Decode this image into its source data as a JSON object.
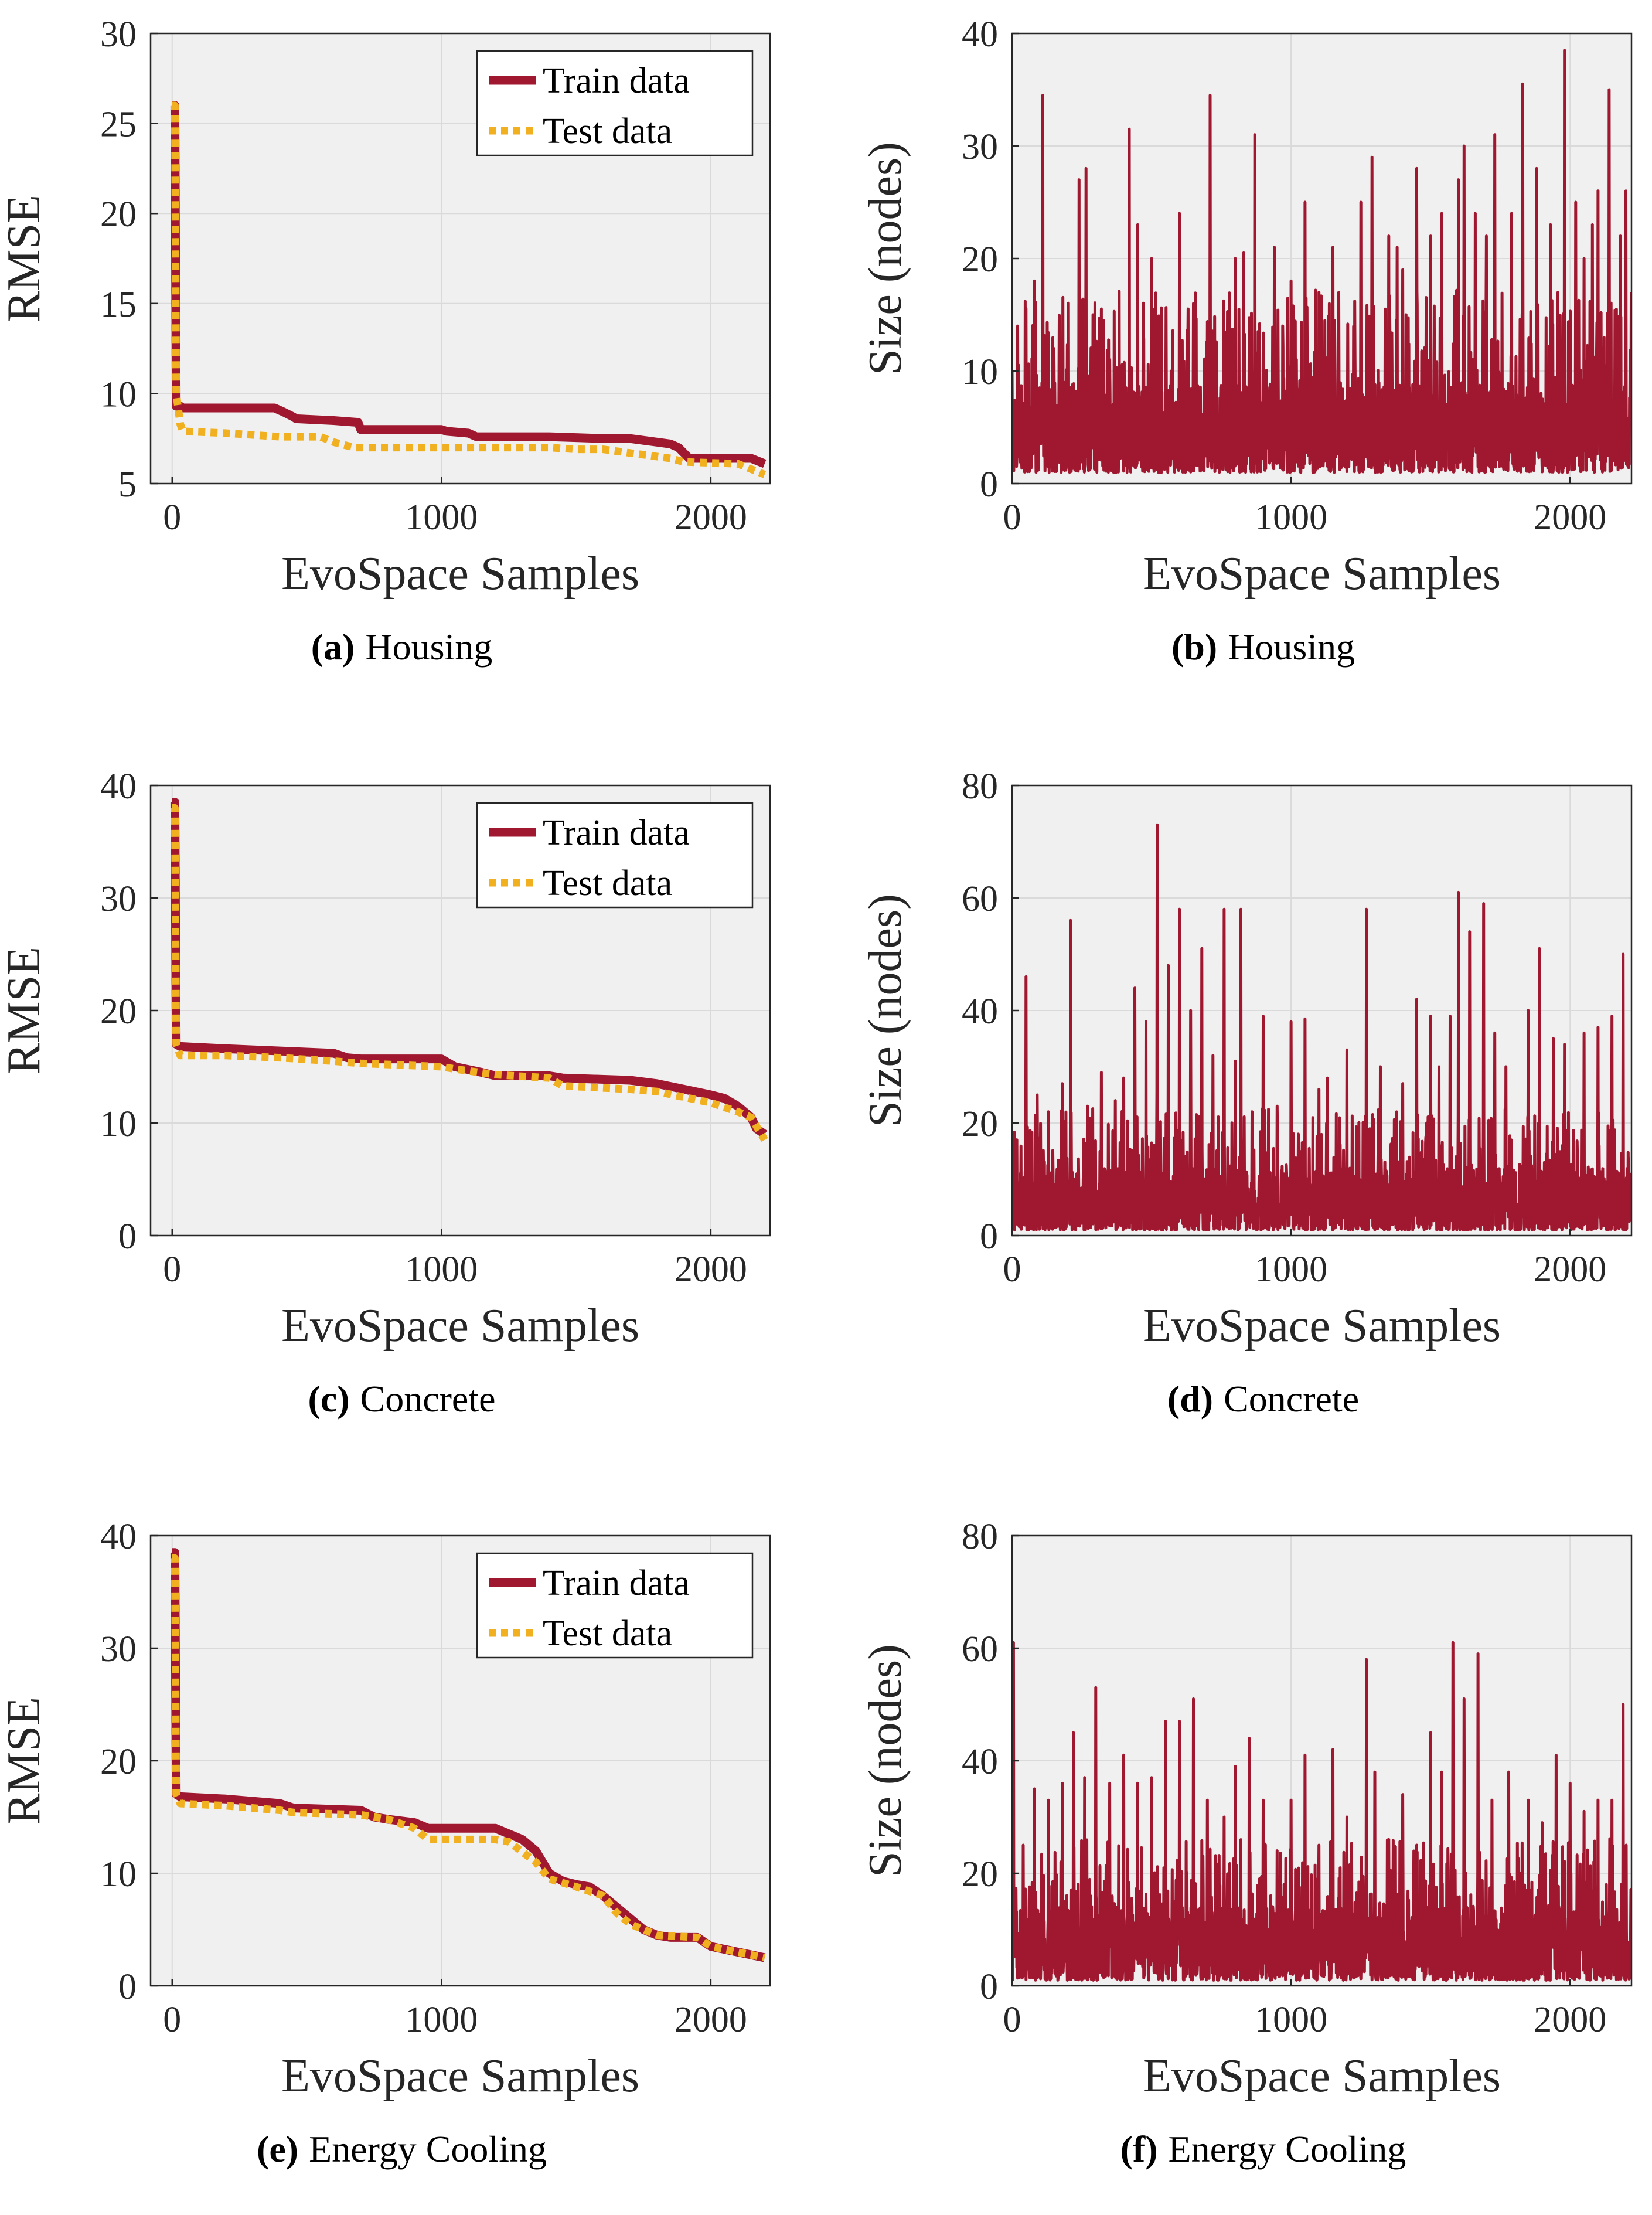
{
  "colors": {
    "train": "#a01830",
    "test": "#f0b020",
    "size": "#a01830",
    "plot_bg": "#f0f0f0",
    "grid": "#dadada",
    "axis": "#262626"
  },
  "chart_data": [
    {
      "id": "a",
      "type": "line",
      "caption_letter": "(a)",
      "caption_text": "Housing",
      "title": "",
      "xlabel": "EvoSpace Samples",
      "ylabel": "RMSE",
      "xlim": [
        -80,
        2220
      ],
      "ylim": [
        5,
        30
      ],
      "xticks": [
        0,
        1000,
        2000
      ],
      "yticks": [
        5,
        10,
        15,
        20,
        25,
        30
      ],
      "grid": true,
      "legend_position": "top-right",
      "series": [
        {
          "name": "Train data",
          "style": "solid",
          "x": [
            0,
            10,
            15,
            30,
            40,
            380,
            410,
            450,
            460,
            600,
            690,
            700,
            1000,
            1020,
            1100,
            1130,
            1400,
            1600,
            1700,
            1850,
            1880,
            1920,
            2150,
            2200
          ],
          "y": [
            26.0,
            26.0,
            9.3,
            9.3,
            9.2,
            9.2,
            9.0,
            8.7,
            8.6,
            8.5,
            8.4,
            8.0,
            8.0,
            7.9,
            7.8,
            7.6,
            7.6,
            7.5,
            7.5,
            7.2,
            7.0,
            6.4,
            6.4,
            6.1
          ]
        },
        {
          "name": "Test data",
          "style": "dotted",
          "x": [
            0,
            10,
            15,
            30,
            40,
            200,
            400,
            550,
            600,
            650,
            680,
            1000,
            1100,
            1400,
            1500,
            1600,
            1700,
            1750,
            1800,
            1850,
            1900,
            2100,
            2200
          ],
          "y": [
            26.0,
            26.0,
            10.0,
            8.3,
            7.9,
            7.8,
            7.6,
            7.6,
            7.3,
            7.1,
            7.0,
            7.0,
            7.0,
            7.0,
            6.9,
            6.9,
            6.7,
            6.6,
            6.5,
            6.4,
            6.2,
            6.1,
            5.5
          ]
        }
      ]
    },
    {
      "id": "b",
      "type": "line",
      "caption_letter": "(b)",
      "caption_text": "Housing",
      "title": "",
      "xlabel": "EvoSpace Samples",
      "ylabel": "Size (nodes)",
      "xlim": [
        0,
        2220
      ],
      "ylim": [
        0,
        40
      ],
      "xticks": [
        0,
        1000,
        2000
      ],
      "yticks": [
        0,
        10,
        20,
        30,
        40
      ],
      "grid": true,
      "legend_position": "none",
      "series": [
        {
          "name": "Size",
          "style": "solid",
          "samples": 2220,
          "baseline_low": 1,
          "baseline_high": 9,
          "seed": 11,
          "peaks": [
            [
              20,
              14
            ],
            [
              80,
              18
            ],
            [
              110,
              34.5
            ],
            [
              150,
              12
            ],
            [
              190,
              9
            ],
            [
              240,
              27
            ],
            [
              265,
              28
            ],
            [
              290,
              15
            ],
            [
              350,
              11
            ],
            [
              420,
              31.5
            ],
            [
              450,
              23
            ],
            [
              500,
              20
            ],
            [
              570,
              10
            ],
            [
              600,
              24
            ],
            [
              650,
              16
            ],
            [
              710,
              34.5
            ],
            [
              760,
              13
            ],
            [
              800,
              20
            ],
            [
              830,
              20.5
            ],
            [
              870,
              31
            ],
            [
              900,
              12
            ],
            [
              940,
              21
            ],
            [
              1000,
              18
            ],
            [
              1050,
              25
            ],
            [
              1100,
              17
            ],
            [
              1150,
              21
            ],
            [
              1250,
              25
            ],
            [
              1290,
              29
            ],
            [
              1350,
              22
            ],
            [
              1380,
              21
            ],
            [
              1400,
              19
            ],
            [
              1450,
              28
            ],
            [
              1500,
              22
            ],
            [
              1540,
              24
            ],
            [
              1600,
              27
            ],
            [
              1620,
              30
            ],
            [
              1660,
              24
            ],
            [
              1700,
              22
            ],
            [
              1730,
              31
            ],
            [
              1790,
              24
            ],
            [
              1830,
              35.5
            ],
            [
              1880,
              28
            ],
            [
              1930,
              23
            ],
            [
              1980,
              38.5
            ],
            [
              2020,
              25
            ],
            [
              2050,
              20
            ],
            [
              2080,
              23
            ],
            [
              2100,
              26
            ],
            [
              2140,
              35
            ],
            [
              2180,
              22
            ],
            [
              2200,
              26
            ]
          ],
          "end_value": 17
        }
      ]
    },
    {
      "id": "c",
      "type": "line",
      "caption_letter": "(c)",
      "caption_text": "Concrete",
      "title": "",
      "xlabel": "EvoSpace Samples",
      "ylabel": "RMSE",
      "xlim": [
        -80,
        2220
      ],
      "ylim": [
        0,
        40
      ],
      "xticks": [
        0,
        1000,
        2000
      ],
      "yticks": [
        0,
        10,
        20,
        30,
        40
      ],
      "grid": true,
      "legend_position": "top-right",
      "series": [
        {
          "name": "Train data",
          "style": "solid",
          "x": [
            0,
            10,
            15,
            30,
            200,
            400,
            600,
            650,
            700,
            1000,
            1050,
            1150,
            1200,
            1400,
            1450,
            1700,
            1800,
            1900,
            2000,
            2050,
            2100,
            2150,
            2170,
            2200
          ],
          "y": [
            38.5,
            38.5,
            17.0,
            16.8,
            16.6,
            16.4,
            16.2,
            15.8,
            15.7,
            15.7,
            15.0,
            14.5,
            14.2,
            14.2,
            14.0,
            13.8,
            13.5,
            13.0,
            12.5,
            12.2,
            11.5,
            10.5,
            9.5,
            9.0
          ]
        },
        {
          "name": "Test data",
          "style": "dotted",
          "x": [
            0,
            10,
            15,
            30,
            200,
            400,
            600,
            700,
            1000,
            1050,
            1200,
            1400,
            1450,
            1700,
            1800,
            1900,
            2000,
            2100,
            2150,
            2200
          ],
          "y": [
            38.0,
            38.0,
            17.0,
            16.0,
            16.0,
            15.8,
            15.5,
            15.3,
            15.0,
            14.8,
            14.3,
            14.0,
            13.3,
            13.0,
            12.8,
            12.3,
            11.8,
            11.0,
            10.5,
            8.5
          ]
        }
      ]
    },
    {
      "id": "d",
      "type": "line",
      "caption_letter": "(d)",
      "caption_text": "Concrete",
      "title": "",
      "xlabel": "EvoSpace Samples",
      "ylabel": "Size (nodes)",
      "xlim": [
        0,
        2220
      ],
      "ylim": [
        0,
        80
      ],
      "xticks": [
        0,
        1000,
        2000
      ],
      "yticks": [
        0,
        20,
        40,
        60,
        80
      ],
      "grid": true,
      "legend_position": "none",
      "series": [
        {
          "name": "Size",
          "style": "solid",
          "samples": 2220,
          "baseline_low": 1,
          "baseline_high": 12,
          "seed": 23,
          "peaks": [
            [
              5,
              10
            ],
            [
              50,
              46
            ],
            [
              90,
              25
            ],
            [
              130,
              22
            ],
            [
              180,
              27
            ],
            [
              210,
              56
            ],
            [
              270,
              23
            ],
            [
              320,
              29
            ],
            [
              370,
              24
            ],
            [
              400,
              28
            ],
            [
              440,
              44
            ],
            [
              480,
              38
            ],
            [
              520,
              73
            ],
            [
              560,
              48
            ],
            [
              600,
              58
            ],
            [
              640,
              40
            ],
            [
              680,
              51
            ],
            [
              720,
              32
            ],
            [
              760,
              58
            ],
            [
              800,
              31
            ],
            [
              820,
              58
            ],
            [
              860,
              22
            ],
            [
              900,
              39
            ],
            [
              950,
              23
            ],
            [
              1000,
              38
            ],
            [
              1050,
              38.5
            ],
            [
              1100,
              26
            ],
            [
              1130,
              28
            ],
            [
              1200,
              33
            ],
            [
              1270,
              58
            ],
            [
              1320,
              30
            ],
            [
              1400,
              27
            ],
            [
              1450,
              42
            ],
            [
              1500,
              39
            ],
            [
              1530,
              30
            ],
            [
              1570,
              39
            ],
            [
              1600,
              61
            ],
            [
              1640,
              54
            ],
            [
              1690,
              59
            ],
            [
              1730,
              36
            ],
            [
              1770,
              30
            ],
            [
              1850,
              40
            ],
            [
              1890,
              51
            ],
            [
              1940,
              35
            ],
            [
              1980,
              34
            ],
            [
              2050,
              36
            ],
            [
              2100,
              37
            ],
            [
              2150,
              39
            ],
            [
              2190,
              50
            ]
          ],
          "end_value": 5
        }
      ]
    },
    {
      "id": "e",
      "type": "line",
      "caption_letter": "(e)",
      "caption_text": "Energy Cooling",
      "title": "",
      "xlabel": "EvoSpace Samples",
      "ylabel": "RMSE",
      "xlim": [
        -80,
        2220
      ],
      "ylim": [
        0,
        40
      ],
      "xticks": [
        0,
        1000,
        2000
      ],
      "yticks": [
        0,
        10,
        20,
        30,
        40
      ],
      "grid": true,
      "legend_position": "top-right",
      "series": [
        {
          "name": "Train data",
          "style": "solid",
          "x": [
            0,
            10,
            15,
            30,
            200,
            400,
            450,
            700,
            750,
            800,
            900,
            950,
            1200,
            1250,
            1300,
            1350,
            1400,
            1450,
            1500,
            1550,
            1600,
            1650,
            1700,
            1750,
            1800,
            1850,
            1950,
            2000,
            2100,
            2200
          ],
          "y": [
            38.5,
            38.5,
            17.0,
            16.8,
            16.6,
            16.2,
            15.8,
            15.6,
            15.0,
            14.8,
            14.5,
            14.0,
            14.0,
            13.5,
            13.0,
            12.0,
            10.0,
            9.3,
            9.0,
            8.8,
            8.0,
            7.0,
            6.0,
            5.0,
            4.5,
            4.3,
            4.3,
            3.5,
            3.0,
            2.5
          ]
        },
        {
          "name": "Test data",
          "style": "dotted",
          "x": [
            0,
            10,
            15,
            30,
            200,
            400,
            450,
            700,
            800,
            900,
            950,
            1200,
            1250,
            1350,
            1400,
            1500,
            1600,
            1650,
            1700,
            1750,
            1800,
            1950,
            2000,
            2100,
            2200
          ],
          "y": [
            38.0,
            38.0,
            17.0,
            16.2,
            16.0,
            15.6,
            15.4,
            15.2,
            14.8,
            14.0,
            13.0,
            13.0,
            12.8,
            11.0,
            9.5,
            8.8,
            8.0,
            6.5,
            5.5,
            5.0,
            4.5,
            4.3,
            3.5,
            3.0,
            2.5
          ]
        }
      ]
    },
    {
      "id": "f",
      "type": "line",
      "caption_letter": "(f)",
      "caption_text": "Energy Cooling",
      "title": "",
      "xlabel": "EvoSpace Samples",
      "ylabel": "Size (nodes)",
      "xlim": [
        0,
        2220
      ],
      "ylim": [
        0,
        80
      ],
      "xticks": [
        0,
        1000,
        2000
      ],
      "yticks": [
        0,
        20,
        40,
        60,
        80
      ],
      "grid": true,
      "legend_position": "none",
      "series": [
        {
          "name": "Size",
          "style": "solid",
          "samples": 2220,
          "baseline_low": 1,
          "baseline_high": 14,
          "seed": 37,
          "peaks": [
            [
              5,
              61
            ],
            [
              40,
              25
            ],
            [
              80,
              35
            ],
            [
              130,
              33
            ],
            [
              180,
              36
            ],
            [
              220,
              45
            ],
            [
              260,
              37
            ],
            [
              300,
              53
            ],
            [
              350,
              36
            ],
            [
              400,
              41
            ],
            [
              450,
              36
            ],
            [
              500,
              37
            ],
            [
              550,
              47
            ],
            [
              600,
              47
            ],
            [
              650,
              51
            ],
            [
              700,
              33
            ],
            [
              760,
              30
            ],
            [
              800,
              39
            ],
            [
              850,
              44
            ],
            [
              900,
              33
            ],
            [
              950,
              24
            ],
            [
              1000,
              33
            ],
            [
              1050,
              41
            ],
            [
              1100,
              25
            ],
            [
              1150,
              42
            ],
            [
              1200,
              30
            ],
            [
              1270,
              58
            ],
            [
              1300,
              38
            ],
            [
              1350,
              26
            ],
            [
              1400,
              34
            ],
            [
              1450,
              25
            ],
            [
              1500,
              45
            ],
            [
              1540,
              38
            ],
            [
              1580,
              61
            ],
            [
              1620,
              51
            ],
            [
              1670,
              59
            ],
            [
              1720,
              33
            ],
            [
              1780,
              38
            ],
            [
              1850,
              33
            ],
            [
              1900,
              29
            ],
            [
              1950,
              41
            ],
            [
              2000,
              36
            ],
            [
              2050,
              31
            ],
            [
              2100,
              33
            ],
            [
              2150,
              33
            ],
            [
              2190,
              50
            ]
          ],
          "end_value": 5
        }
      ]
    }
  ]
}
